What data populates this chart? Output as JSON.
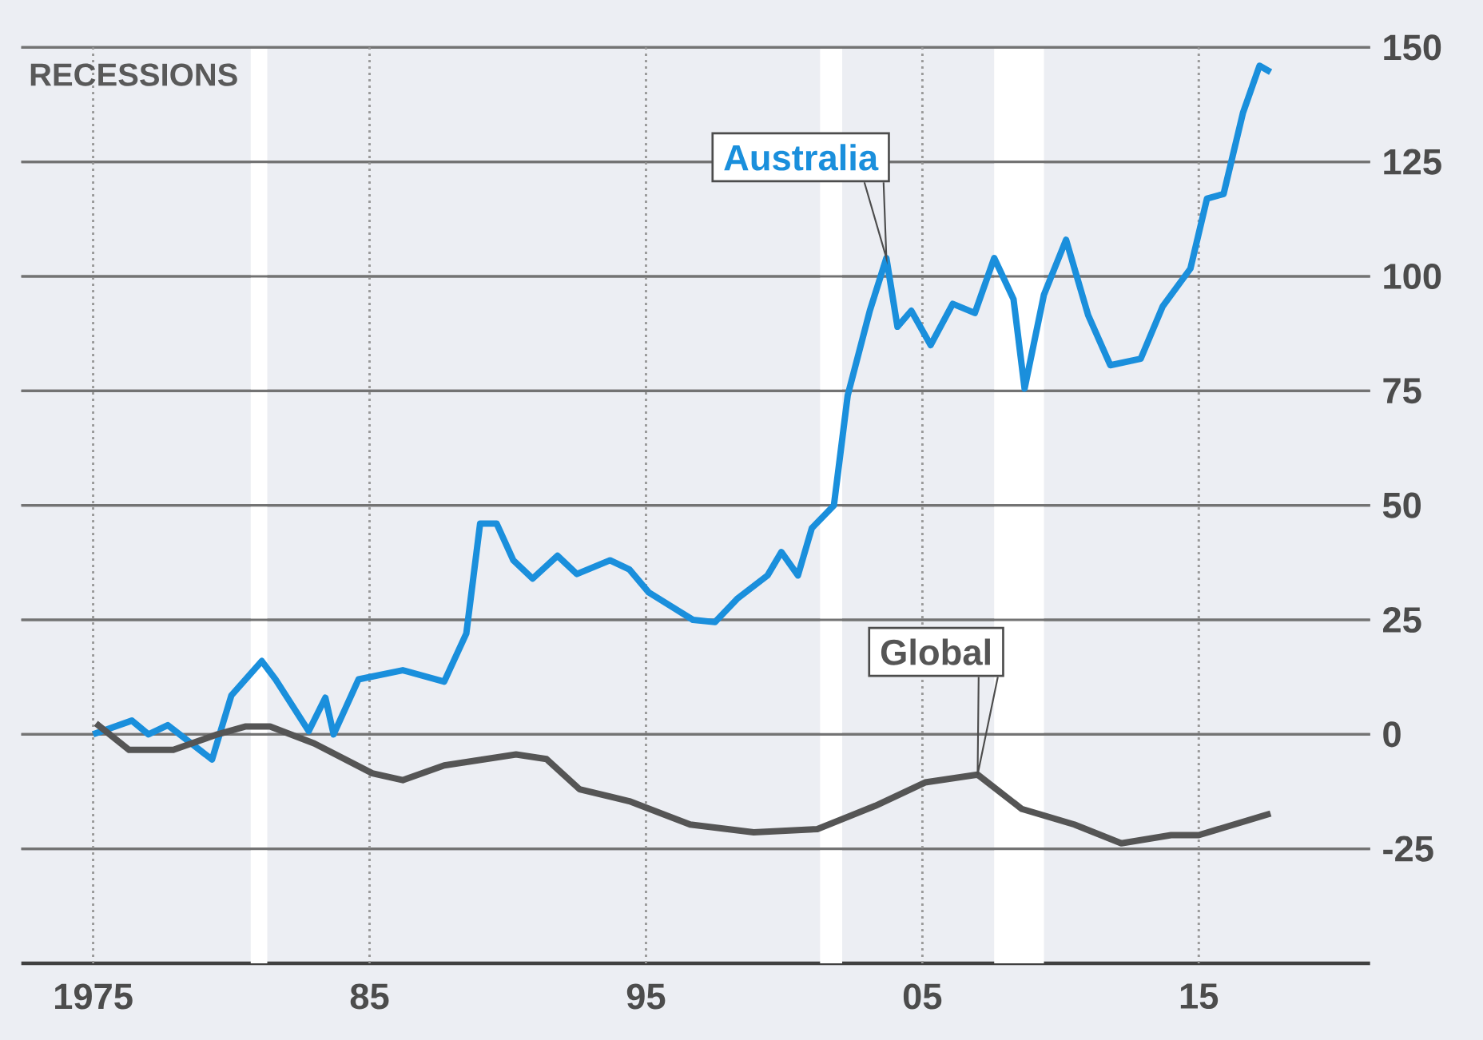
{
  "chart_data": {
    "type": "line",
    "annotations": [
      "RECESSIONS"
    ],
    "xlim": [
      1972.4,
      2021.2
    ],
    "ylim": [
      -50,
      150
    ],
    "xticks": [
      {
        "value": 1975,
        "label": "1975"
      },
      {
        "value": 1985,
        "label": "85"
      },
      {
        "value": 1995,
        "label": "95"
      },
      {
        "value": 2005,
        "label": "05"
      },
      {
        "value": 2015,
        "label": "15"
      }
    ],
    "yticks": [
      {
        "value": -25,
        "label": "-25"
      },
      0,
      25,
      50,
      75,
      100,
      125,
      150
    ],
    "grid": true,
    "legend": false,
    "line_style": "solid",
    "marker": "none",
    "bands": [
      {
        "axis": "x",
        "from": 1980.7,
        "to": 1981.3,
        "color": "#ffffff"
      },
      {
        "axis": "x",
        "from": 2001.3,
        "to": 2002.1,
        "color": "#ffffff"
      },
      {
        "axis": "x",
        "from": 2007.6,
        "to": 2009.4,
        "color": "#ffffff"
      }
    ],
    "series": [
      {
        "name": "Australia",
        "color": "#1a8fdc",
        "x": [
          1975.0,
          1976.4,
          1977.0,
          1977.7,
          1979.3,
          1980.0,
          1981.1,
          1981.6,
          1982.8,
          1983.4,
          1983.7,
          1984.6,
          1986.2,
          1987.7,
          1988.5,
          1989.0,
          1989.6,
          1990.2,
          1990.9,
          1991.8,
          1992.5,
          1993.7,
          1994.4,
          1995.1,
          1996.7,
          1997.5,
          1998.3,
          1999.4,
          1999.9,
          2000.5,
          2001.0,
          2001.8,
          2002.3,
          2003.1,
          2003.7,
          2004.1,
          2004.6,
          2005.3,
          2006.1,
          2006.9,
          2007.6,
          2008.3,
          2008.7,
          2009.4,
          2010.2,
          2011.0,
          2011.8,
          2012.9,
          2013.7,
          2014.7,
          2015.3,
          2015.9,
          2016.6,
          2017.2,
          2017.6
        ],
        "values": [
          0,
          3,
          0,
          2,
          -5.5,
          8.5,
          16,
          12,
          0.7,
          8,
          0,
          12,
          14,
          11.5,
          22,
          46,
          46,
          38,
          34,
          39,
          35,
          38,
          36,
          31,
          25,
          24.5,
          29.6,
          34.7,
          39.8,
          34.7,
          45,
          50,
          74,
          92.5,
          104,
          89,
          92.5,
          85,
          94,
          92,
          104,
          95,
          75.5,
          96,
          108,
          91.5,
          80.6,
          82,
          93.5,
          101.7,
          117,
          118,
          135.7,
          146,
          144.6
        ]
      },
      {
        "name": "Global",
        "color": "#555555",
        "x": [
          1975.1,
          1976.3,
          1977.9,
          1979.5,
          1980.5,
          1981.4,
          1983.0,
          1985.1,
          1986.2,
          1987.7,
          1990.3,
          1991.4,
          1992.6,
          1994.4,
          1996.6,
          1998.9,
          2001.2,
          2003.3,
          2005.1,
          2007.0,
          2008.6,
          2010.5,
          2012.2,
          2014.0,
          2015.0,
          2017.6
        ],
        "values": [
          2.4,
          -3.4,
          -3.4,
          0,
          1.7,
          1.7,
          -2,
          -8.5,
          -10,
          -6.8,
          -4.4,
          -5.4,
          -12,
          -14.6,
          -19.7,
          -21.4,
          -20.7,
          -15.6,
          -10.5,
          -8.8,
          -16.3,
          -19.7,
          -23.8,
          -22,
          -22,
          -17.3
        ]
      }
    ]
  }
}
